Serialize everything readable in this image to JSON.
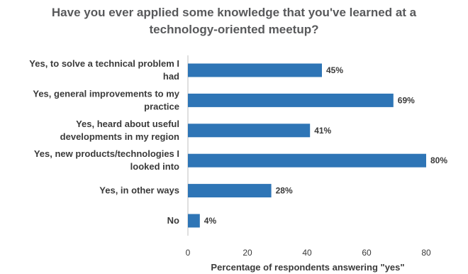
{
  "chart_data": {
    "type": "bar",
    "orientation": "horizontal",
    "title_lines": [
      "Have you ever applied some knowledge that you've learned at a",
      "technology-oriented meetup?"
    ],
    "categories": [
      [
        "Yes, to solve a technical problem I",
        "had"
      ],
      [
        "Yes, general improvements to my",
        "practice"
      ],
      [
        "Yes, heard about useful",
        "developments in my region"
      ],
      [
        "Yes, new products/technologies I",
        "looked into"
      ],
      [
        "Yes, in other ways"
      ],
      [
        "No"
      ]
    ],
    "values": [
      45,
      69,
      41,
      80,
      28,
      4
    ],
    "value_labels": [
      "45%",
      "69%",
      "41%",
      "80%",
      "28%",
      "4%"
    ],
    "xlabel": "Percentage of respondents answering \"yes\"",
    "xlim": [
      0,
      90
    ],
    "xticks": [
      0,
      20,
      40,
      60,
      80
    ],
    "grid": false,
    "bar_color": "#2e75b6"
  }
}
